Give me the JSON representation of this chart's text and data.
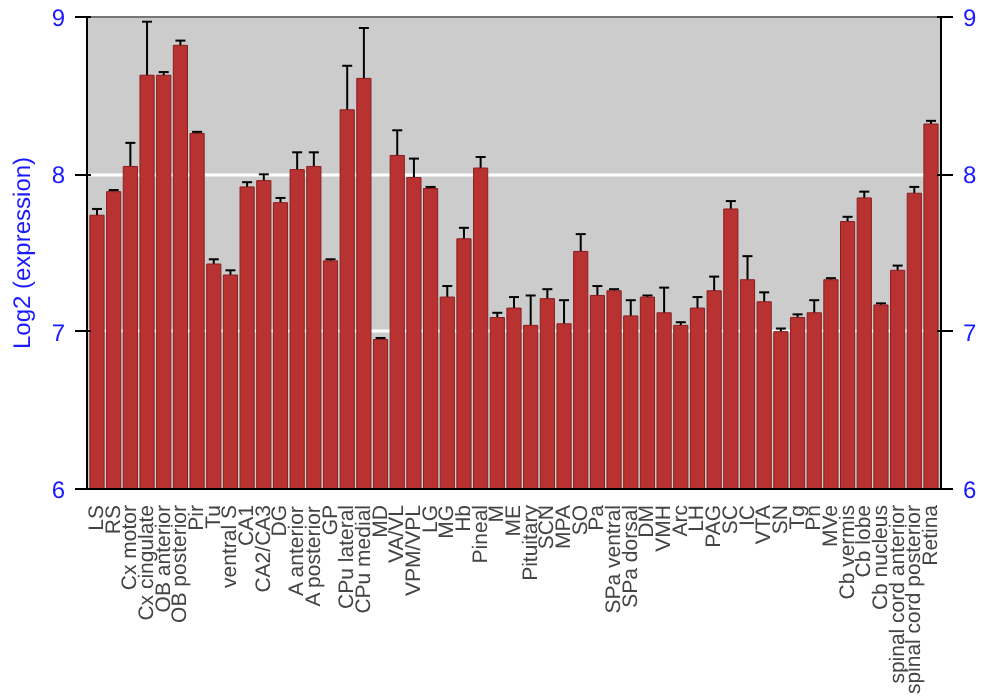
{
  "chart_data": {
    "type": "bar",
    "ylabel": "Log2 (expression)",
    "categories": [
      "LS",
      "RS",
      "Cx motor",
      "Cx cingulate",
      "OB anterior",
      "OB posterior",
      "Pir",
      "Tu",
      "ventral S",
      "CA1",
      "CA2/CA3",
      "DG",
      "A anterior",
      "A posterior",
      "GP",
      "CPu lateral",
      "CPu medial",
      "MD",
      "VA/VL",
      "VPM/VPL",
      "LG",
      "MG",
      "Hb",
      "Pineal",
      "M",
      "ME",
      "Pituitary",
      "SCN",
      "MPA",
      "SO",
      "Pa",
      "SPa ventral",
      "SPa dorsal",
      "DM",
      "VMH",
      "Arc",
      "LH",
      "PAG",
      "SC",
      "IC",
      "VTA",
      "SN",
      "Tg",
      "Pn",
      "MVe",
      "Cb vermis",
      "Cb lobe",
      "Cb nucleus",
      "spinal cord anterior",
      "spinal cord posterior",
      "Retina"
    ],
    "values": [
      7.74,
      7.89,
      8.05,
      8.63,
      8.63,
      8.82,
      8.26,
      7.43,
      7.36,
      7.92,
      7.96,
      7.82,
      8.03,
      8.05,
      7.45,
      8.41,
      8.61,
      6.95,
      8.12,
      7.98,
      7.91,
      7.22,
      7.59,
      8.04,
      7.09,
      7.15,
      7.04,
      7.21,
      7.05,
      7.51,
      7.23,
      7.26,
      7.1,
      7.22,
      7.12,
      7.04,
      7.15,
      7.26,
      7.78,
      7.33,
      7.19,
      7.0,
      7.09,
      7.12,
      7.33,
      7.7,
      7.85,
      7.17,
      7.39,
      7.88,
      8.32
    ],
    "errors": [
      0.04,
      0.01,
      0.15,
      0.34,
      0.02,
      0.03,
      0.01,
      0.03,
      0.03,
      0.03,
      0.04,
      0.03,
      0.11,
      0.09,
      0.01,
      0.28,
      0.32,
      0.01,
      0.16,
      0.12,
      0.01,
      0.07,
      0.07,
      0.07,
      0.03,
      0.07,
      0.19,
      0.06,
      0.15,
      0.11,
      0.06,
      0.01,
      0.1,
      0.01,
      0.16,
      0.02,
      0.07,
      0.09,
      0.05,
      0.15,
      0.06,
      0.02,
      0.02,
      0.08,
      0.01,
      0.03,
      0.04,
      0.01,
      0.03,
      0.04,
      0.02
    ],
    "color": "#b83232",
    "ylim": [
      6,
      9
    ],
    "yticks": [
      6,
      7,
      8,
      9
    ],
    "y2lim": [
      6,
      9
    ],
    "y2ticks": [
      6,
      7,
      8,
      9
    ],
    "grid": "y"
  }
}
